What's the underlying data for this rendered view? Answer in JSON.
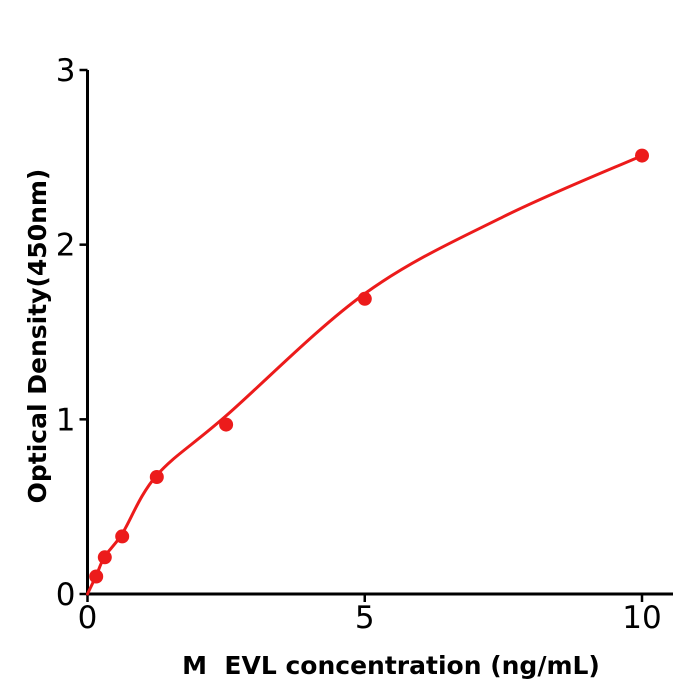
{
  "figure": {
    "background": "#ffffff",
    "axis_color": "#000000",
    "accent_red": "#ec1b1b"
  },
  "chart_data": {
    "type": "scatter",
    "title": "",
    "xlabel": "M  EVL concentration (ng/mL)",
    "ylabel": "Optical Density(450nm)",
    "x_ticks": [
      0,
      5,
      10
    ],
    "y_ticks": [
      0,
      1,
      2,
      3
    ],
    "xlim": [
      0,
      10.56
    ],
    "ylim": [
      0,
      3
    ],
    "grid": false,
    "legend_position": "none",
    "series": [
      {
        "name": "standard-points",
        "kind": "scatter",
        "color": "#ec1b1b",
        "marker_radius": 7,
        "x": [
          0.156,
          0.3125,
          0.625,
          1.25,
          2.5,
          5,
          10
        ],
        "y": [
          0.1,
          0.21,
          0.33,
          0.67,
          0.97,
          1.69,
          2.51
        ]
      },
      {
        "name": "fit-curve",
        "kind": "line",
        "color": "#ec1b1b",
        "line_width": 3,
        "x": [
          0,
          0.156,
          0.3125,
          0.625,
          1.25,
          2.5,
          5,
          7.5,
          10
        ],
        "y": [
          0,
          0.105,
          0.215,
          0.345,
          0.68,
          1.02,
          1.72,
          2.16,
          2.51
        ]
      }
    ]
  }
}
